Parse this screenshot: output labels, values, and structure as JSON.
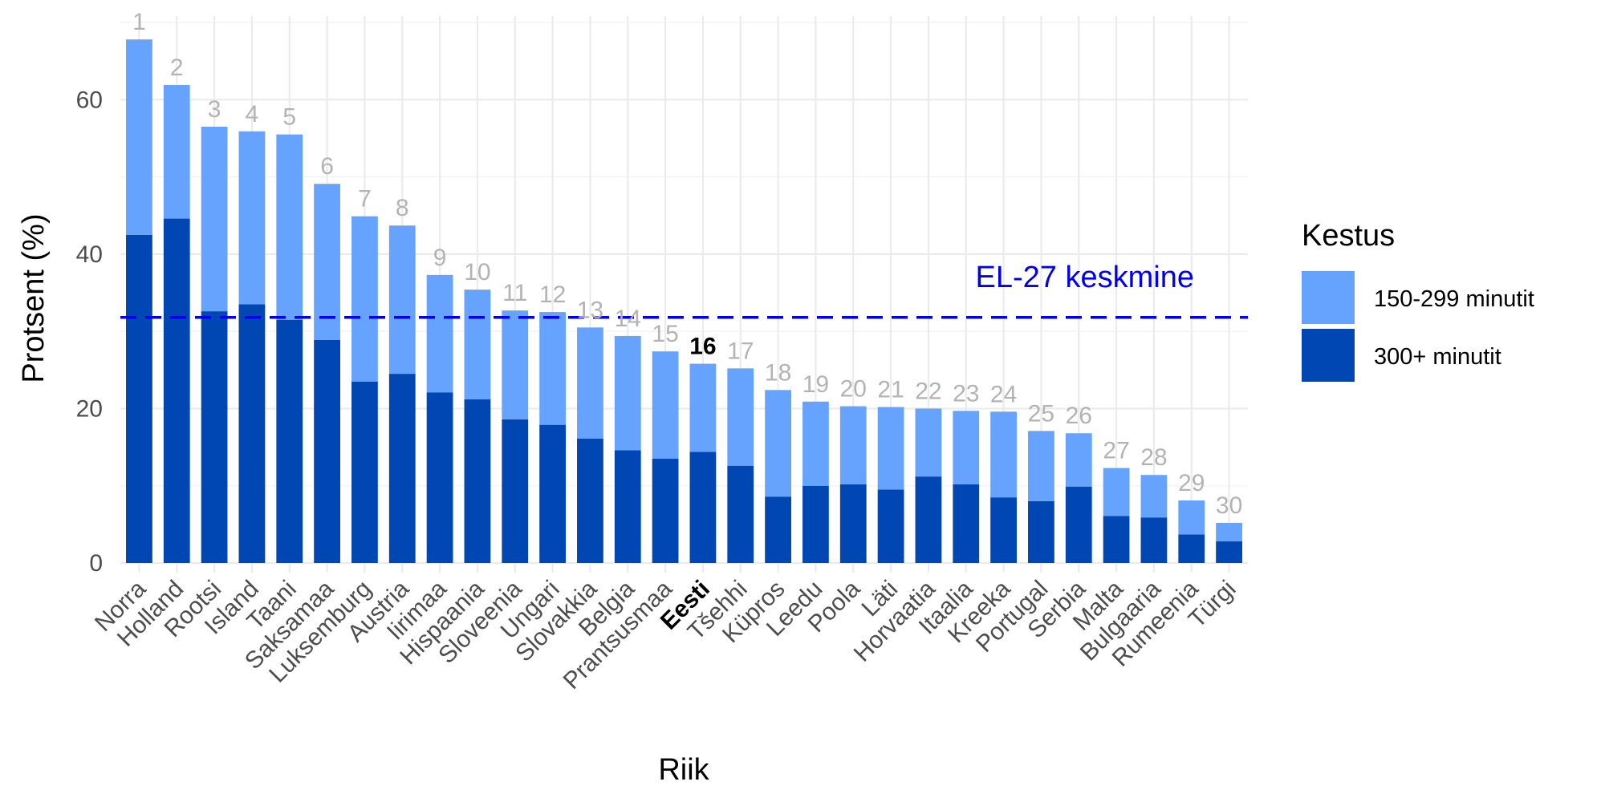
{
  "chart_data": {
    "type": "bar",
    "stacked": true,
    "title": "",
    "xlabel": "Riik",
    "ylabel": "Protsent (%)",
    "ylim": [
      0,
      70
    ],
    "y_ticks": [
      0,
      20,
      40,
      60
    ],
    "grid": true,
    "highlight": "Eesti",
    "categories": [
      "Norra",
      "Holland",
      "Rootsi",
      "Island",
      "Taani",
      "Saksamaa",
      "Luksemburg",
      "Austria",
      "Iirimaa",
      "Hispaania",
      "Sloveenia",
      "Ungari",
      "Slovakkia",
      "Belgia",
      "Prantsusmaa",
      "Eesti",
      "Tšehhi",
      "Küpros",
      "Leedu",
      "Poola",
      "Läti",
      "Horvaatia",
      "Itaalia",
      "Kreeka",
      "Portugal",
      "Serbia",
      "Malta",
      "Bulgaaria",
      "Rumeenia",
      "Türgi"
    ],
    "ranks": [
      "1",
      "2",
      "3",
      "4",
      "5",
      "6",
      "7",
      "8",
      "9",
      "10",
      "11",
      "12",
      "13",
      "14",
      "15",
      "16",
      "17",
      "18",
      "19",
      "20",
      "21",
      "22",
      "23",
      "24",
      "25",
      "26",
      "27",
      "28",
      "29",
      "30"
    ],
    "series": [
      {
        "name": "300+ minutit",
        "color": "#0047b3",
        "values": [
          42.5,
          44.6,
          32.6,
          33.5,
          31.5,
          28.9,
          23.5,
          24.5,
          22.1,
          21.2,
          18.6,
          17.9,
          16.1,
          14.6,
          13.5,
          14.4,
          12.6,
          8.6,
          10.0,
          10.2,
          9.5,
          11.2,
          10.2,
          8.5,
          8.0,
          9.9,
          6.1,
          5.9,
          3.7,
          2.8
        ]
      },
      {
        "name": "150-299 minutit",
        "color": "#66a3ff",
        "values": [
          25.3,
          17.3,
          23.9,
          22.4,
          24.0,
          20.2,
          21.4,
          19.2,
          15.2,
          14.2,
          14.1,
          14.6,
          14.4,
          14.8,
          13.9,
          11.4,
          12.6,
          13.8,
          10.9,
          10.1,
          10.7,
          8.8,
          9.5,
          11.1,
          9.1,
          6.9,
          6.2,
          5.5,
          4.4,
          2.4
        ]
      }
    ],
    "reference_line": {
      "label": "EL-27 keskmine",
      "value": 31.8,
      "color": "#0000ee",
      "style": "dashed"
    },
    "legend": {
      "title": "Kestus",
      "position": "right",
      "order": [
        "150-299 minutit",
        "300+ minutit"
      ]
    }
  }
}
